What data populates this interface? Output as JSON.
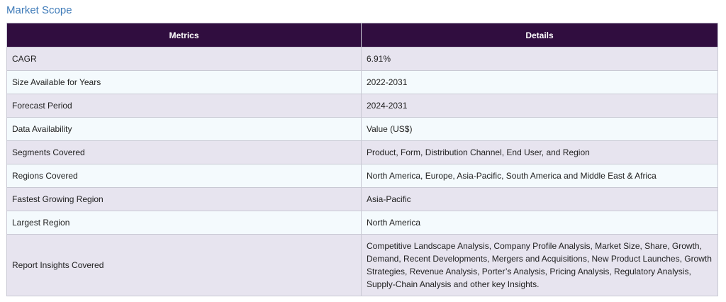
{
  "title": "Market Scope",
  "table": {
    "headers": [
      "Metrics",
      "Details"
    ],
    "rows": [
      {
        "metric": "CAGR",
        "detail": "6.91%"
      },
      {
        "metric": "Size Available for Years",
        "detail": "2022-2031"
      },
      {
        "metric": "Forecast Period",
        "detail": "2024-2031"
      },
      {
        "metric": "Data Availability",
        "detail": "Value (US$)"
      },
      {
        "metric": "Segments Covered",
        "detail": "Product, Form, Distribution Channel, End User, and Region"
      },
      {
        "metric": "Regions Covered",
        "detail": "North America, Europe, Asia-Pacific, South America and Middle East & Africa"
      },
      {
        "metric": "Fastest Growing Region",
        "detail": "Asia-Pacific"
      },
      {
        "metric": "Largest Region",
        "detail": "North America"
      },
      {
        "metric": "Report Insights Covered",
        "detail": "Competitive Landscape Analysis, Company Profile Analysis, Market Size, Share, Growth, Demand, Recent Developments, Mergers and Acquisitions, New Product Launches, Growth Strategies, Revenue Analysis, Porter’s Analysis, Pricing Analysis, Regulatory Analysis, Supply-Chain Analysis and other key Insights."
      }
    ]
  },
  "colors": {
    "title": "#3d7ab8",
    "header_bg": "#300d3f",
    "row_odd_bg": "#e7e4ef",
    "row_even_bg": "#f4fafd",
    "border": "#c9c9d4"
  }
}
